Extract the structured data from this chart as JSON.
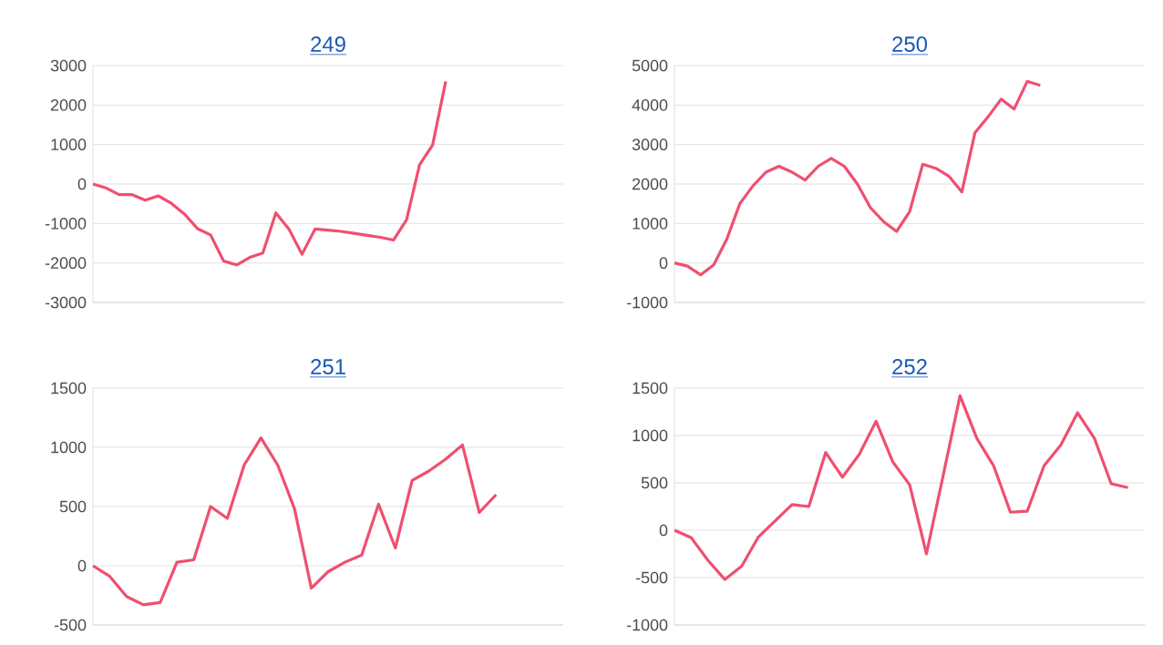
{
  "chart_data": [
    {
      "type": "line",
      "title": "249",
      "categories": [
        null,
        null,
        null,
        null,
        null,
        null,
        null,
        null,
        null,
        null,
        null,
        null,
        null,
        null,
        null,
        null,
        null,
        null,
        null,
        null,
        null,
        null,
        null,
        null,
        null,
        null,
        null,
        null,
        null,
        null,
        null,
        null,
        null,
        null,
        null,
        null,
        null
      ],
      "series": [
        {
          "color": "#f04f6f",
          "values": [
            0,
            -100,
            -270,
            -270,
            -410,
            -300,
            -490,
            -760,
            -1130,
            -1290,
            -1950,
            -2050,
            -1860,
            -1750,
            -730,
            -1140,
            -1780,
            -1140,
            -1170,
            -1200,
            -1250,
            -1300,
            -1350,
            -1420,
            -910,
            490,
            990,
            2600,
            null,
            null,
            null,
            null,
            null,
            null,
            null,
            null,
            null
          ]
        }
      ],
      "ylim": [
        -3000,
        3000
      ],
      "yticks": [
        -3000,
        -2000,
        -1000,
        0,
        1000,
        2000,
        3000
      ],
      "grid": "y",
      "tick_labels": "y",
      "marker": "none"
    },
    {
      "type": "line",
      "title": "250",
      "categories": [
        null,
        null,
        null,
        null,
        null,
        null,
        null,
        null,
        null,
        null,
        null,
        null,
        null,
        null,
        null,
        null,
        null,
        null,
        null,
        null,
        null,
        null,
        null,
        null,
        null,
        null,
        null,
        null,
        null,
        null,
        null,
        null,
        null,
        null,
        null,
        null,
        null
      ],
      "series": [
        {
          "color": "#f04f6f",
          "values": [
            0,
            -80,
            -300,
            -50,
            600,
            1500,
            1950,
            2300,
            2450,
            2300,
            2100,
            2450,
            2650,
            2450,
            2000,
            1400,
            1050,
            800,
            1300,
            2500,
            2400,
            2200,
            1800,
            3300,
            3700,
            4150,
            3900,
            4600,
            4500,
            null,
            null,
            null,
            null,
            null,
            null,
            null,
            null
          ]
        }
      ],
      "ylim": [
        -1000,
        5000
      ],
      "yticks": [
        -1000,
        0,
        1000,
        2000,
        3000,
        4000,
        5000
      ],
      "grid": "y",
      "tick_labels": "y",
      "marker": "none"
    },
    {
      "type": "line",
      "title": "251",
      "categories": [
        null,
        null,
        null,
        null,
        null,
        null,
        null,
        null,
        null,
        null,
        null,
        null,
        null,
        null,
        null,
        null,
        null,
        null,
        null,
        null,
        null,
        null,
        null,
        null,
        null,
        null,
        null,
        null,
        null
      ],
      "series": [
        {
          "color": "#f04f6f",
          "values": [
            0,
            -90,
            -260,
            -330,
            -310,
            30,
            50,
            500,
            400,
            850,
            1080,
            850,
            480,
            -190,
            -50,
            30,
            90,
            520,
            150,
            720,
            800,
            900,
            1020,
            450,
            600,
            null,
            null,
            null,
            null
          ]
        }
      ],
      "ylim": [
        -500,
        1500
      ],
      "yticks": [
        -500,
        0,
        500,
        1000,
        1500
      ],
      "grid": "y",
      "tick_labels": "y",
      "marker": "none"
    },
    {
      "type": "line",
      "title": "252",
      "categories": [
        null,
        null,
        null,
        null,
        null,
        null,
        null,
        null,
        null,
        null,
        null,
        null,
        null,
        null,
        null,
        null,
        null,
        null,
        null,
        null,
        null,
        null,
        null,
        null,
        null,
        null,
        null,
        null,
        null
      ],
      "series": [
        {
          "color": "#f04f6f",
          "values": [
            0,
            -80,
            -320,
            -520,
            -380,
            -70,
            100,
            270,
            250,
            820,
            560,
            800,
            1150,
            720,
            480,
            -250,
            580,
            1420,
            970,
            680,
            190,
            200,
            680,
            900,
            1240,
            970,
            490,
            450,
            null
          ]
        }
      ],
      "ylim": [
        -1000,
        1500
      ],
      "yticks": [
        -1000,
        -500,
        0,
        500,
        1000,
        1500
      ],
      "grid": "y",
      "tick_labels": "y",
      "marker": "none"
    }
  ]
}
